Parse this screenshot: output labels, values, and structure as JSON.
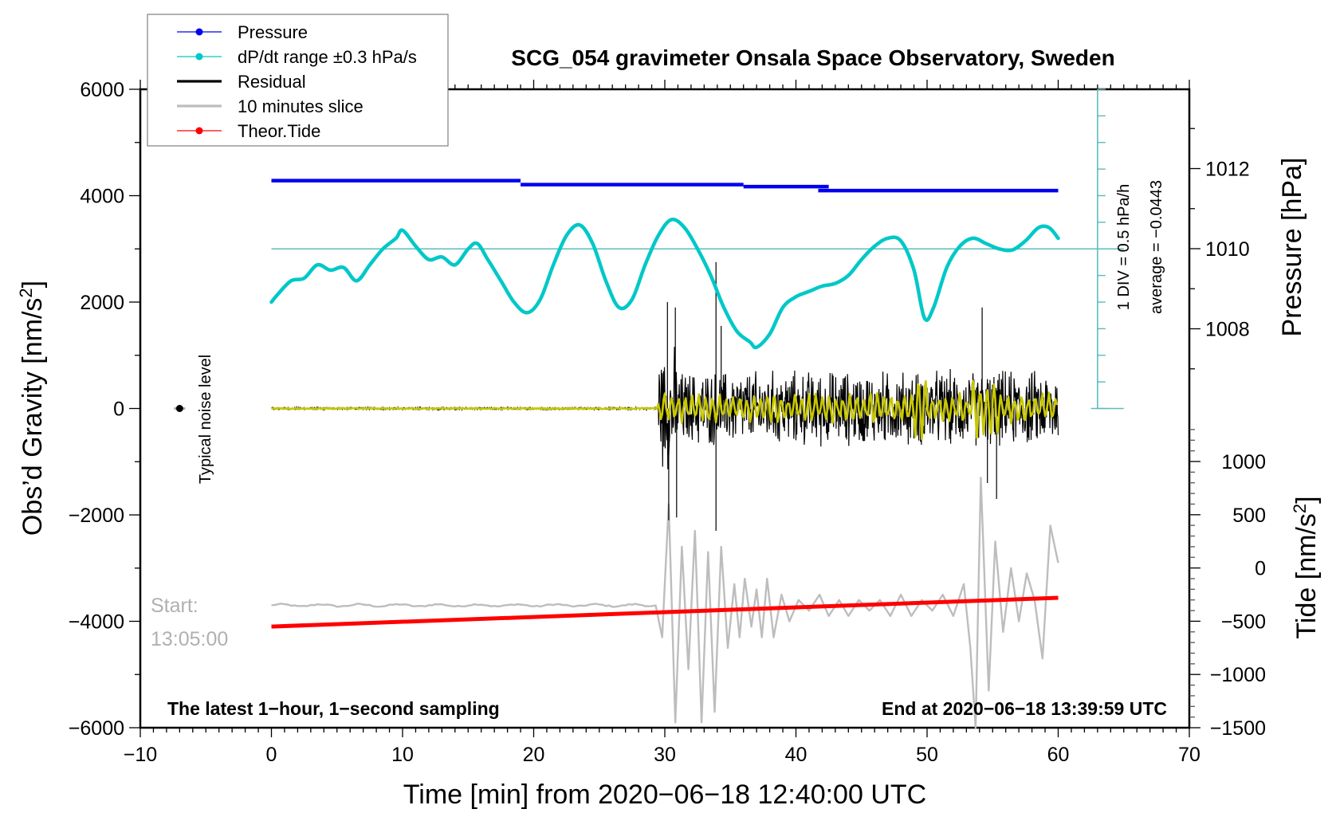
{
  "chart_data": {
    "type": "line",
    "title": "SCG_054 gravimeter Onsala Space Observatory, Sweden",
    "xlabel": "Time [min] from 2020−06−18 12:40:00 UTC",
    "ylabel_left": "Obs’d Gravity [nm/s²]",
    "ylabel_right_pressure": "Pressure [hPa]",
    "ylabel_right_tide": "Tide [nm/s²]",
    "xlim": [
      -10,
      70
    ],
    "ylim_left": [
      -6000,
      6000
    ],
    "x_ticks": [
      -10,
      0,
      10,
      20,
      30,
      40,
      50,
      60,
      70
    ],
    "x_tick_labels": [
      "−10",
      "0",
      "10",
      "20",
      "30",
      "40",
      "50",
      "60",
      "70"
    ],
    "y_left_ticks": [
      6000,
      4000,
      2000,
      0,
      -2000,
      -4000,
      -6000
    ],
    "y_left_tick_labels": [
      "6000",
      "4000",
      "2000",
      "0",
      "−2000",
      "−4000",
      "−6000"
    ],
    "pressure_ticks": [
      1012,
      1010,
      1008
    ],
    "pressure_tick_labels": [
      "1012",
      "1010",
      "1008"
    ],
    "tide_ticks": [
      1000,
      500,
      0,
      -500,
      -1000,
      -1500
    ],
    "tide_tick_labels": [
      "1000",
      "500",
      "0",
      "−500",
      "−1000",
      "−1500"
    ],
    "legend_position": "top-left",
    "legend": [
      {
        "label": "Pressure",
        "color": "#0000ee",
        "style": "line-dot"
      },
      {
        "label": "dP/dt range ±0.3 hPa/s",
        "color": "#00c8c8",
        "style": "line-dot"
      },
      {
        "label": "Residual",
        "color": "#000000",
        "style": "line"
      },
      {
        "label": "10 minutes slice",
        "color": "#bdbdbd",
        "style": "line"
      },
      {
        "label": "Theor.Tide",
        "color": "#ff0000",
        "style": "line-dot"
      }
    ],
    "annotations": {
      "noise_label": "Typical noise level",
      "start_label_1": "Start:",
      "start_label_2": "13:05:00",
      "bottom_left": "The latest 1−hour, 1−second sampling",
      "bottom_right": "End at 2020−06−18 13:39:59 UTC",
      "div_note": "1 DIV = 0.5 hPa/h",
      "average_note": "average = −0.0443"
    },
    "noise_marker": {
      "x": -7,
      "y": 0
    },
    "series": [
      {
        "name": "Pressure",
        "axis": "pressure",
        "color": "#0000ee",
        "segments": [
          {
            "x": [
              0,
              19
            ],
            "y": 1011.7
          },
          {
            "x": [
              19,
              36
            ],
            "y": 1011.6
          },
          {
            "x": [
              36,
              42.5
            ],
            "y": 1011.55
          },
          {
            "x": [
              41.7,
              60
            ],
            "y": 1011.45
          }
        ]
      },
      {
        "name": "dP/dt",
        "axis": "left",
        "color": "#00c8c8",
        "reference_line_y": 3000,
        "x": [
          0,
          0.5,
          1.5,
          2.5,
          3.5,
          4.5,
          5.5,
          6.5,
          7.5,
          8.5,
          9.5,
          10.0,
          11.0,
          12.0,
          13.0,
          14.0,
          15.0,
          15.7,
          16.5,
          17.5,
          18.5,
          19.5,
          20.5,
          21.5,
          22.5,
          23.5,
          24.5,
          25.5,
          26.5,
          27.5,
          28.5,
          29.5,
          30.5,
          31.5,
          32.5,
          33.5,
          34.5,
          35.5,
          36.5,
          37.0,
          38.0,
          39.0,
          40.0,
          41.0,
          42.0,
          43.0,
          44.0,
          45.0,
          46.0,
          47.0,
          48.0,
          49.0,
          49.8,
          50.5,
          51.5,
          52.5,
          53.5,
          54.5,
          55.5,
          56.5,
          57.5,
          58.5,
          59.3,
          60.0
        ],
        "y": [
          2000,
          2150,
          2400,
          2450,
          2700,
          2600,
          2650,
          2400,
          2700,
          3000,
          3200,
          3350,
          3050,
          2800,
          2850,
          2700,
          3000,
          3100,
          2800,
          2400,
          2000,
          1800,
          2050,
          2700,
          3250,
          3450,
          3100,
          2400,
          1900,
          2050,
          2700,
          3250,
          3550,
          3400,
          3000,
          2500,
          1900,
          1450,
          1250,
          1150,
          1400,
          1900,
          2100,
          2200,
          2300,
          2350,
          2500,
          2800,
          3050,
          3200,
          3150,
          2600,
          1700,
          1900,
          2650,
          3050,
          3200,
          3100,
          3000,
          2980,
          3150,
          3400,
          3400,
          3200
        ]
      },
      {
        "name": "Residual",
        "axis": "left",
        "color": "#000000",
        "quiet_until_min": 29.5,
        "quiet_amplitude": 20,
        "active_amplitude": 800,
        "notable_spikes": [
          {
            "x": 30.2,
            "y": 2000
          },
          {
            "x": 30.3,
            "y": -2100
          },
          {
            "x": 30.8,
            "y": 1900
          },
          {
            "x": 30.9,
            "y": -2050
          },
          {
            "x": 33.9,
            "y": 2750
          },
          {
            "x": 33.9,
            "y": -2300
          },
          {
            "x": 34.3,
            "y": 1550
          },
          {
            "x": 54.2,
            "y": 1900
          },
          {
            "x": 54.6,
            "y": -1400
          },
          {
            "x": 55.3,
            "y": -1700
          }
        ]
      },
      {
        "name": "Residual (filtered)",
        "axis": "left",
        "color": "#c8c800",
        "quiet_until_min": 29.5,
        "active_amplitude": 300
      },
      {
        "name": "10 minutes slice",
        "axis": "left",
        "color": "#bdbdbd",
        "baseline_y": -3700,
        "quiet_until_min": 29.0,
        "peaks": [
          {
            "x": 29.3,
            "y": -3700
          },
          {
            "x": 29.8,
            "y": -4300
          },
          {
            "x": 30.3,
            "y": -1800
          },
          {
            "x": 30.8,
            "y": -5900
          },
          {
            "x": 31.3,
            "y": -2600
          },
          {
            "x": 31.8,
            "y": -4900
          },
          {
            "x": 32.3,
            "y": -2300
          },
          {
            "x": 32.8,
            "y": -5900
          },
          {
            "x": 33.3,
            "y": -2700
          },
          {
            "x": 33.8,
            "y": -5700
          },
          {
            "x": 34.3,
            "y": -2600
          },
          {
            "x": 34.8,
            "y": -4500
          },
          {
            "x": 35.3,
            "y": -3300
          },
          {
            "x": 35.7,
            "y": -4300
          },
          {
            "x": 36.1,
            "y": -3200
          },
          {
            "x": 36.6,
            "y": -4100
          },
          {
            "x": 37.0,
            "y": -3400
          },
          {
            "x": 37.4,
            "y": -4300
          },
          {
            "x": 37.8,
            "y": -3200
          },
          {
            "x": 38.3,
            "y": -4300
          },
          {
            "x": 38.9,
            "y": -3500
          },
          {
            "x": 39.5,
            "y": -4000
          },
          {
            "x": 40.2,
            "y": -3600
          },
          {
            "x": 41.0,
            "y": -3800
          },
          {
            "x": 41.8,
            "y": -3500
          },
          {
            "x": 42.5,
            "y": -3900
          },
          {
            "x": 43.3,
            "y": -3600
          },
          {
            "x": 44.0,
            "y": -3900
          },
          {
            "x": 44.8,
            "y": -3600
          },
          {
            "x": 45.6,
            "y": -3800
          },
          {
            "x": 46.4,
            "y": -3600
          },
          {
            "x": 47.2,
            "y": -3900
          },
          {
            "x": 48.0,
            "y": -3500
          },
          {
            "x": 48.8,
            "y": -3900
          },
          {
            "x": 49.6,
            "y": -3600
          },
          {
            "x": 50.4,
            "y": -3800
          },
          {
            "x": 51.2,
            "y": -3500
          },
          {
            "x": 52.0,
            "y": -3900
          },
          {
            "x": 52.8,
            "y": -3300
          },
          {
            "x": 53.3,
            "y": -4500
          },
          {
            "x": 53.7,
            "y": -6000
          },
          {
            "x": 54.1,
            "y": -1300
          },
          {
            "x": 54.7,
            "y": -5300
          },
          {
            "x": 55.2,
            "y": -2500
          },
          {
            "x": 55.8,
            "y": -4200
          },
          {
            "x": 56.4,
            "y": -3000
          },
          {
            "x": 57.0,
            "y": -4000
          },
          {
            "x": 57.6,
            "y": -3100
          },
          {
            "x": 58.2,
            "y": -3600
          },
          {
            "x": 58.8,
            "y": -4700
          },
          {
            "x": 59.4,
            "y": -2200
          },
          {
            "x": 60.0,
            "y": -2900
          }
        ]
      },
      {
        "name": "Theor.Tide",
        "axis": "tide",
        "color": "#ff0000",
        "x": [
          0,
          60
        ],
        "y": [
          -550,
          -280
        ]
      }
    ],
    "grid": false
  }
}
